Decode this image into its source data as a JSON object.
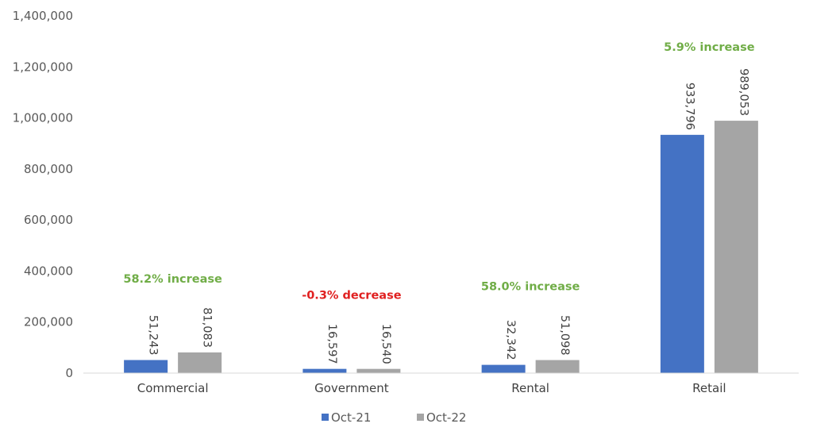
{
  "chart_data": {
    "type": "bar",
    "title": "",
    "xlabel": "",
    "ylabel": "",
    "categories": [
      "Commercial",
      "Government",
      "Rental",
      "Retail"
    ],
    "series": [
      {
        "name": "Oct-21",
        "color": "#4472C4",
        "values": [
          51243,
          16597,
          32342,
          933796
        ]
      },
      {
        "name": "Oct-22",
        "color": "#A5A5A5",
        "values": [
          81083,
          16540,
          51098,
          989053
        ]
      }
    ],
    "data_labels": [
      [
        "51,243",
        "16,597",
        "32,342",
        "933,796"
      ],
      [
        "81,083",
        "16,540",
        "51,098",
        "989,053"
      ]
    ],
    "ylim": [
      0,
      1400000
    ],
    "yticks": [
      0,
      200000,
      400000,
      600000,
      800000,
      1000000,
      1200000,
      1400000
    ],
    "ytick_labels": [
      "0",
      "200,000",
      "400,000",
      "600,000",
      "800,000",
      "1,000,000",
      "1,200,000",
      "1,400,000"
    ],
    "grid": false,
    "legend_position": "bottom",
    "annotations": [
      {
        "category": "Commercial",
        "text": "58.2% increase",
        "color": "#70AD47"
      },
      {
        "category": "Government",
        "text": "-0.3% decrease",
        "color": "#E02020"
      },
      {
        "category": "Rental",
        "text": "58.0% increase",
        "color": "#70AD47"
      },
      {
        "category": "Retail",
        "text": "5.9% increase",
        "color": "#70AD47"
      }
    ]
  }
}
